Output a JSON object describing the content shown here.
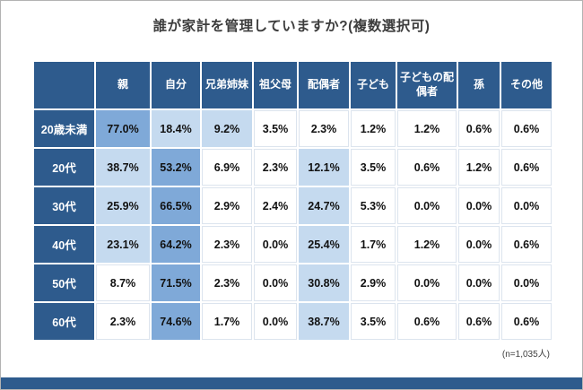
{
  "chart_data": {
    "type": "heatmap",
    "title": "誰が家計を管理していますか?(複数選択可)",
    "unit": "%",
    "columns": [
      "親",
      "自分",
      "兄弟姉妹",
      "祖父母",
      "配偶者",
      "子ども",
      "子どもの配偶者",
      "孫",
      "その他"
    ],
    "row_labels": [
      "20歳未満",
      "20代",
      "30代",
      "40代",
      "50代",
      "60代"
    ],
    "values": [
      [
        77.0,
        18.4,
        9.2,
        3.5,
        2.3,
        1.2,
        1.2,
        0.6,
        0.6
      ],
      [
        38.7,
        53.2,
        6.9,
        2.3,
        12.1,
        3.5,
        0.6,
        1.2,
        0.6
      ],
      [
        25.9,
        66.5,
        2.9,
        2.4,
        24.7,
        5.3,
        0.0,
        0.0,
        0.0
      ],
      [
        23.1,
        64.2,
        2.3,
        0.0,
        25.4,
        1.7,
        1.2,
        0.0,
        0.6
      ],
      [
        8.7,
        71.5,
        2.3,
        0.0,
        30.8,
        2.9,
        0.0,
        0.0,
        0.0
      ],
      [
        2.3,
        74.6,
        1.7,
        0.0,
        38.7,
        3.5,
        0.6,
        0.6,
        0.6
      ]
    ],
    "note": "(n=1,035人)",
    "legend": "none",
    "grid": "on",
    "colors": {
      "header_bg": "#2e5b8d",
      "header_text": "#ffffff",
      "cell_high_bg": "#7fa9d8",
      "cell_mid_bg": "#c5daef",
      "cell_low_bg": "#ffffff",
      "footer_bar": "#2e5b8d"
    },
    "shading_thresholds": {
      "high_min": 50,
      "mid_min": 9
    }
  }
}
